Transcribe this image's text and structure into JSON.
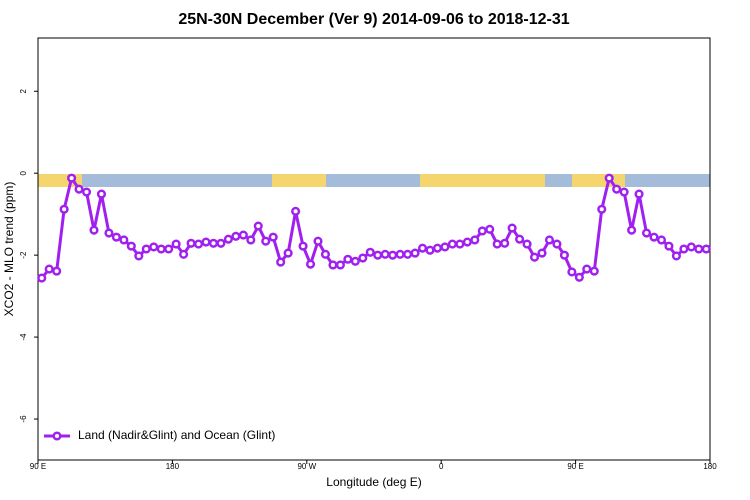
{
  "chart_data": {
    "type": "line",
    "title": "25N-30N December (Ver 9)   2014-09-06 to 2018-12-31",
    "x_label": "Longitude (deg E)",
    "y_label": "XCO2 - MLO trend (ppm)",
    "xlim": [
      90,
      540
    ],
    "ylim": [
      -7,
      3.3
    ],
    "xticks": [
      {
        "value": 90,
        "label": "90 E"
      },
      180,
      {
        "value": 270,
        "label": "90 W"
      },
      {
        "value": 360,
        "label": "0"
      },
      {
        "value": 450,
        "label": "90 E"
      },
      {
        "value": 540,
        "label": "180"
      }
    ],
    "yticks": [
      -6,
      -4,
      -2,
      0,
      2
    ],
    "legend": "bottom left",
    "x": [
      92.5,
      97.5,
      102.5,
      107.5,
      112.5,
      117.5,
      122.5,
      127.5,
      132.5,
      137.5,
      142.5,
      147.5,
      152.5,
      157.5,
      162.5,
      167.5,
      172.5,
      177.5,
      182.5,
      187.5,
      192.5,
      197.5,
      202.5,
      207.5,
      212.5,
      217.5,
      222.5,
      227.5,
      232.5,
      237.5,
      242.5,
      247.5,
      252.5,
      257.5,
      262.5,
      267.5,
      272.5,
      277.5,
      282.5,
      287.5,
      292.5,
      297.5,
      302.5,
      307.5,
      312.5,
      317.5,
      322.5,
      327.5,
      332.5,
      337.5,
      342.5,
      347.5,
      352.5,
      357.5,
      362.5,
      367.5,
      372.5,
      377.5,
      382.5,
      387.5,
      392.5,
      397.5,
      402.5,
      407.5,
      412.5,
      417.5,
      422.5,
      427.5,
      432.5,
      437.5,
      442.5,
      447.5,
      452.5,
      457.5,
      462.5,
      467.5,
      472.5,
      477.5,
      482.5,
      487.5,
      492.5,
      497.5,
      502.5,
      507.5,
      512.5,
      517.5,
      522.5,
      527.5,
      532.5,
      537.5
    ],
    "series": [
      {
        "name": "Land (Nadir&Glint) and Ocean (Glint)",
        "color": "#a020f0",
        "values": [
          -2.56,
          -2.34,
          -2.39,
          -0.88,
          -0.12,
          -0.39,
          -0.46,
          -1.39,
          -0.51,
          -1.46,
          -1.56,
          -1.63,
          -1.78,
          -2.02,
          -1.85,
          -1.8,
          -1.85,
          -1.85,
          -1.73,
          -1.98,
          -1.71,
          -1.73,
          -1.68,
          -1.71,
          -1.71,
          -1.61,
          -1.54,
          -1.51,
          -1.63,
          -1.29,
          -1.66,
          -1.56,
          -2.17,
          -1.95,
          -0.93,
          -1.78,
          -2.22,
          -1.66,
          -1.98,
          -2.24,
          -2.24,
          -2.1,
          -2.15,
          -2.07,
          -1.93,
          -2.0,
          -1.98,
          -2.0,
          -1.98,
          -1.98,
          -1.95,
          -1.83,
          -1.88,
          -1.83,
          -1.8,
          -1.73,
          -1.73,
          -1.68,
          -1.63,
          -1.41,
          -1.37,
          -1.73,
          -1.71,
          -1.34,
          -1.61,
          -1.73,
          -2.05,
          -1.95,
          -1.63,
          -1.73,
          -2.0,
          -2.41,
          -2.54,
          -2.34,
          -2.39,
          -0.88,
          -0.12,
          -0.39,
          -0.46,
          -1.39,
          -0.51,
          -1.46,
          -1.56,
          -1.63,
          -1.78,
          -2.02,
          -1.85,
          -1.8,
          -1.85,
          -1.85
        ]
      }
    ]
  }
}
